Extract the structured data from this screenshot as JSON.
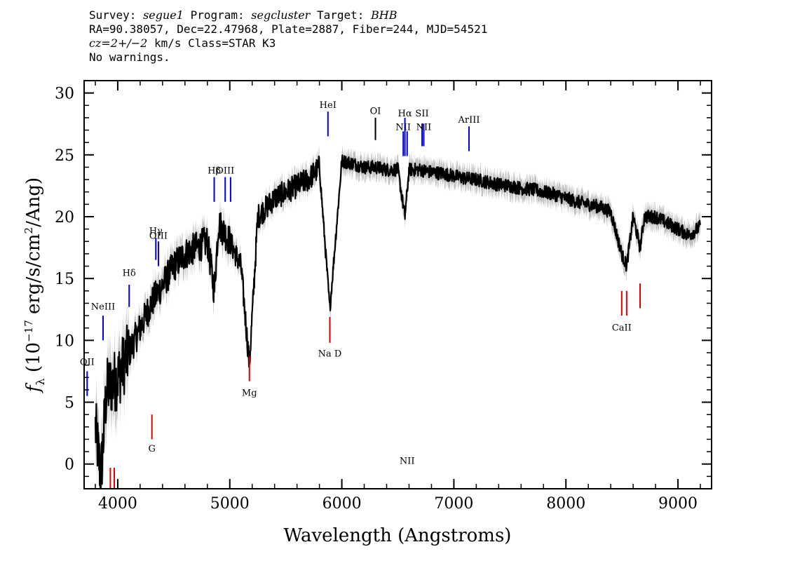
{
  "header": {
    "line1": {
      "survey_label": "Survey: ",
      "survey": "segue1",
      "program_label": " Program: ",
      "program": "segcluster",
      "target_label": " Target: ",
      "target": "BHB"
    },
    "line2": "RA=90.38057, Dec=22.47968, Plate=2887, Fiber=244, MJD=54521",
    "line3": {
      "cz": "cz=2+/−2",
      "rest": " km/s Class=STAR K3"
    },
    "line4": "No warnings."
  },
  "chart_data": {
    "type": "line",
    "xlabel": "Wavelength (Angstroms)",
    "ylabel": "fλ (10⁻¹⁷ erg/s/cm²/Ang)",
    "xlim": [
      3700,
      9300
    ],
    "ylim": [
      -2,
      31
    ],
    "xticks": [
      4000,
      5000,
      6000,
      7000,
      8000,
      9000
    ],
    "yticks": [
      0,
      5,
      10,
      15,
      20,
      25,
      30
    ],
    "colors": {
      "flux": "#000000",
      "error_band": "#c0c0c0",
      "emission": "#0000dd",
      "absorption": "#dd0000",
      "sky": "#000000"
    },
    "spectrum_anchors": {
      "x": [
        3800,
        3850,
        3900,
        4000,
        4100,
        4200,
        4300,
        4400,
        4500,
        4600,
        4700,
        4800,
        4861,
        4900,
        5000,
        5100,
        5175,
        5250,
        5400,
        5500,
        5600,
        5700,
        5800,
        5893,
        6000,
        6100,
        6200,
        6300,
        6400,
        6500,
        6563,
        6600,
        6700,
        6800,
        6900,
        7000,
        7100,
        7200,
        7300,
        7400,
        7500,
        7600,
        7700,
        7800,
        7900,
        8000,
        8100,
        8200,
        8300,
        8400,
        8498,
        8542,
        8600,
        8662,
        8700,
        8800,
        8900,
        9000,
        9100,
        9200
      ],
      "y": [
        3,
        -1,
        6,
        7,
        9,
        11,
        13,
        14.5,
        16,
        17,
        17.5,
        18,
        14,
        19.5,
        18,
        16,
        8,
        20,
        21.5,
        22,
        22.5,
        23,
        24,
        12.5,
        24.5,
        24.3,
        24,
        24,
        23.8,
        23.8,
        20,
        23.8,
        23.8,
        23.6,
        23.5,
        23.3,
        23.1,
        23,
        22.8,
        22.6,
        22.5,
        22.3,
        22.2,
        22,
        21.8,
        21.5,
        21.2,
        21,
        20.8,
        20.4,
        17,
        16,
        20,
        17.5,
        20,
        20,
        19.5,
        19,
        18.5,
        19.2
      ]
    },
    "emission_lines": [
      {
        "label": "OII",
        "x": 3727,
        "y_bottom": 5.5,
        "y_top": 7.5,
        "label_y": 8
      },
      {
        "label": "NeIII",
        "x": 3869,
        "y_bottom": 10,
        "y_top": 12,
        "label_y": 12.5
      },
      {
        "label": "Hδ",
        "x": 4102,
        "y_bottom": 12.7,
        "y_top": 14.5,
        "label_y": 15.2
      },
      {
        "label": "Hγ",
        "x": 4340,
        "y_bottom": 16.5,
        "y_top": 18.3,
        "label_y": 18.6
      },
      {
        "label": "OIII",
        "x": 4363,
        "y_bottom": 16,
        "y_top": 18,
        "label_y": 18.2
      },
      {
        "label": "Hβ",
        "x": 4861,
        "y_bottom": 21.2,
        "y_top": 23.2,
        "label_y": 23.5
      },
      {
        "label": "OIII",
        "x": 4959,
        "y_bottom": 21.2,
        "y_top": 23.2,
        "label_y": 23.5
      },
      {
        "label": "",
        "x": 5007,
        "y_bottom": 21.2,
        "y_top": 23.2,
        "label_y": 0
      },
      {
        "label": "HeI",
        "x": 5876,
        "y_bottom": 26.5,
        "y_top": 28.5,
        "label_y": 28.8
      },
      {
        "label": "OI",
        "x": 6300,
        "y_bottom": 26.2,
        "y_top": 28,
        "label_y": 28.3
      },
      {
        "label": "NII",
        "x": 6548,
        "y_bottom": 24.9,
        "y_top": 26.9,
        "label_y": 27
      },
      {
        "label": "Hα",
        "x": 6563,
        "y_bottom": 24.9,
        "y_top": 28,
        "label_y": 28.1
      },
      {
        "label": "NII",
        "x": 6583,
        "y_bottom": 24.9,
        "y_top": 26.9,
        "label_y": 0
      },
      {
        "label": "SII",
        "x": 6716,
        "y_bottom": 25.7,
        "y_top": 27.5,
        "label_y": 28.1
      },
      {
        "label": "NII",
        "x": 6731,
        "y_bottom": 25.7,
        "y_top": 27.5,
        "label_y": 27
      },
      {
        "label": "ArIII",
        "x": 7135,
        "y_bottom": 25.3,
        "y_top": 27.3,
        "label_y": 27.6
      }
    ],
    "absorption_lines": [
      {
        "label": "",
        "x": 3934,
        "y_bottom": -2,
        "y_top": -0.3,
        "label_y": 0
      },
      {
        "label": "",
        "x": 3969,
        "y_bottom": -2,
        "y_top": -0.3,
        "label_y": 0
      },
      {
        "label": "G",
        "x": 4305,
        "y_bottom": 2,
        "y_top": 4,
        "label_y": 1
      },
      {
        "label": "Mg",
        "x": 5175,
        "y_bottom": 6.7,
        "y_top": 8.7,
        "label_y": 5.5
      },
      {
        "label": "Na D",
        "x": 5893,
        "y_bottom": 9.8,
        "y_top": 11.9,
        "label_y": 8.7
      },
      {
        "label": "CaII",
        "x": 8498,
        "y_bottom": 12,
        "y_top": 14,
        "label_y": 10.8
      },
      {
        "label": "",
        "x": 8542,
        "y_bottom": 12,
        "y_top": 14,
        "label_y": 0
      },
      {
        "label": "",
        "x": 8662,
        "y_bottom": 12.6,
        "y_top": 14.6,
        "label_y": 0
      }
    ],
    "sky_lines": [
      {
        "label": "",
        "x": 6300,
        "y_bottom": 26.2,
        "y_top": 28
      }
    ]
  }
}
